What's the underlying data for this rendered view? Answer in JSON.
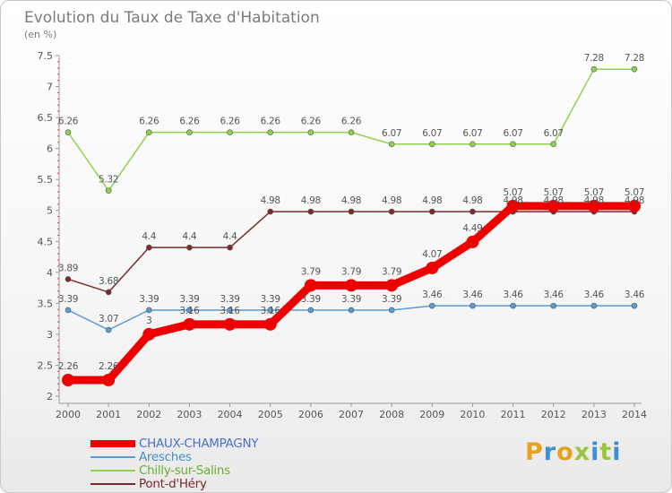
{
  "chart_data": {
    "type": "line",
    "title": "Evolution du Taux de Taxe d'Habitation",
    "subtitle": "(en %)",
    "categories": [
      "2000",
      "2001",
      "2002",
      "2003",
      "2004",
      "2005",
      "2006",
      "2007",
      "2008",
      "2009",
      "2010",
      "2011",
      "2012",
      "2013",
      "2014"
    ],
    "ylim": [
      2,
      7.5
    ],
    "yticks": [
      "2",
      "2.5",
      "3",
      "3.5",
      "4",
      "4.5",
      "5",
      "5.5",
      "6",
      "6.5",
      "7",
      "7.5"
    ],
    "grid": false,
    "legend_position": "bottom-left",
    "series": [
      {
        "name": "CHAUX-CHAMPAGNY",
        "color": "#ee0000",
        "thick": true,
        "values": [
          2.26,
          2.26,
          3.0,
          3.16,
          3.16,
          3.16,
          3.79,
          3.79,
          3.79,
          4.07,
          4.49,
          5.07,
          5.07,
          5.07,
          5.07
        ],
        "labels": [
          "2.26",
          "2.26",
          "3",
          "3.16",
          "3.16",
          "3.16",
          "3.79",
          "3.79",
          "3.79",
          "4.07",
          "4.49",
          "5.07",
          "5.07",
          "5.07",
          "5.07"
        ]
      },
      {
        "name": "Aresches",
        "color": "#5b9bd5",
        "thick": false,
        "values": [
          3.39,
          3.07,
          3.39,
          3.39,
          3.39,
          3.39,
          3.39,
          3.39,
          3.39,
          3.46,
          3.46,
          3.46,
          3.46,
          3.46,
          3.46
        ],
        "labels": [
          "3.39",
          "3.07",
          "3.39",
          "3.39",
          "3.39",
          "3.39",
          "3.39",
          "3.39",
          "3.39",
          "3.46",
          "3.46",
          "3.46",
          "3.46",
          "3.46",
          "3.46"
        ]
      },
      {
        "name": "Chilly-sur-Salins",
        "color": "#8fd14f",
        "thick": false,
        "values": [
          6.26,
          5.32,
          6.26,
          6.26,
          6.26,
          6.26,
          6.26,
          6.26,
          6.07,
          6.07,
          6.07,
          6.07,
          6.07,
          7.28,
          7.28
        ],
        "labels": [
          "6.26",
          "5.32",
          "6.26",
          "6.26",
          "6.26",
          "6.26",
          "6.26",
          "6.26",
          "6.07",
          "6.07",
          "6.07",
          "6.07",
          "6.07",
          "7.28",
          "7.28"
        ]
      },
      {
        "name": "Pont-d'Héry",
        "color": "#7a2a2a",
        "thick": false,
        "values": [
          3.89,
          3.68,
          4.4,
          4.4,
          4.4,
          4.98,
          4.98,
          4.98,
          4.98,
          4.98,
          4.98,
          4.98,
          4.98,
          4.98,
          4.98
        ],
        "labels": [
          "3.89",
          "3.68",
          "4.4",
          "4.4",
          "4.4",
          "4.98",
          "4.98",
          "4.98",
          "4.98",
          "4.98",
          "4.98",
          "4.98",
          "4.98",
          "4.98",
          "4.98"
        ]
      }
    ]
  },
  "logo": {
    "text": "Proxiti",
    "colors": [
      "#e8a020",
      "#3b8fd6",
      "#e8a020",
      "#9bc53d",
      "#3b8fd6",
      "#9bc53d",
      "#3b8fd6"
    ]
  }
}
